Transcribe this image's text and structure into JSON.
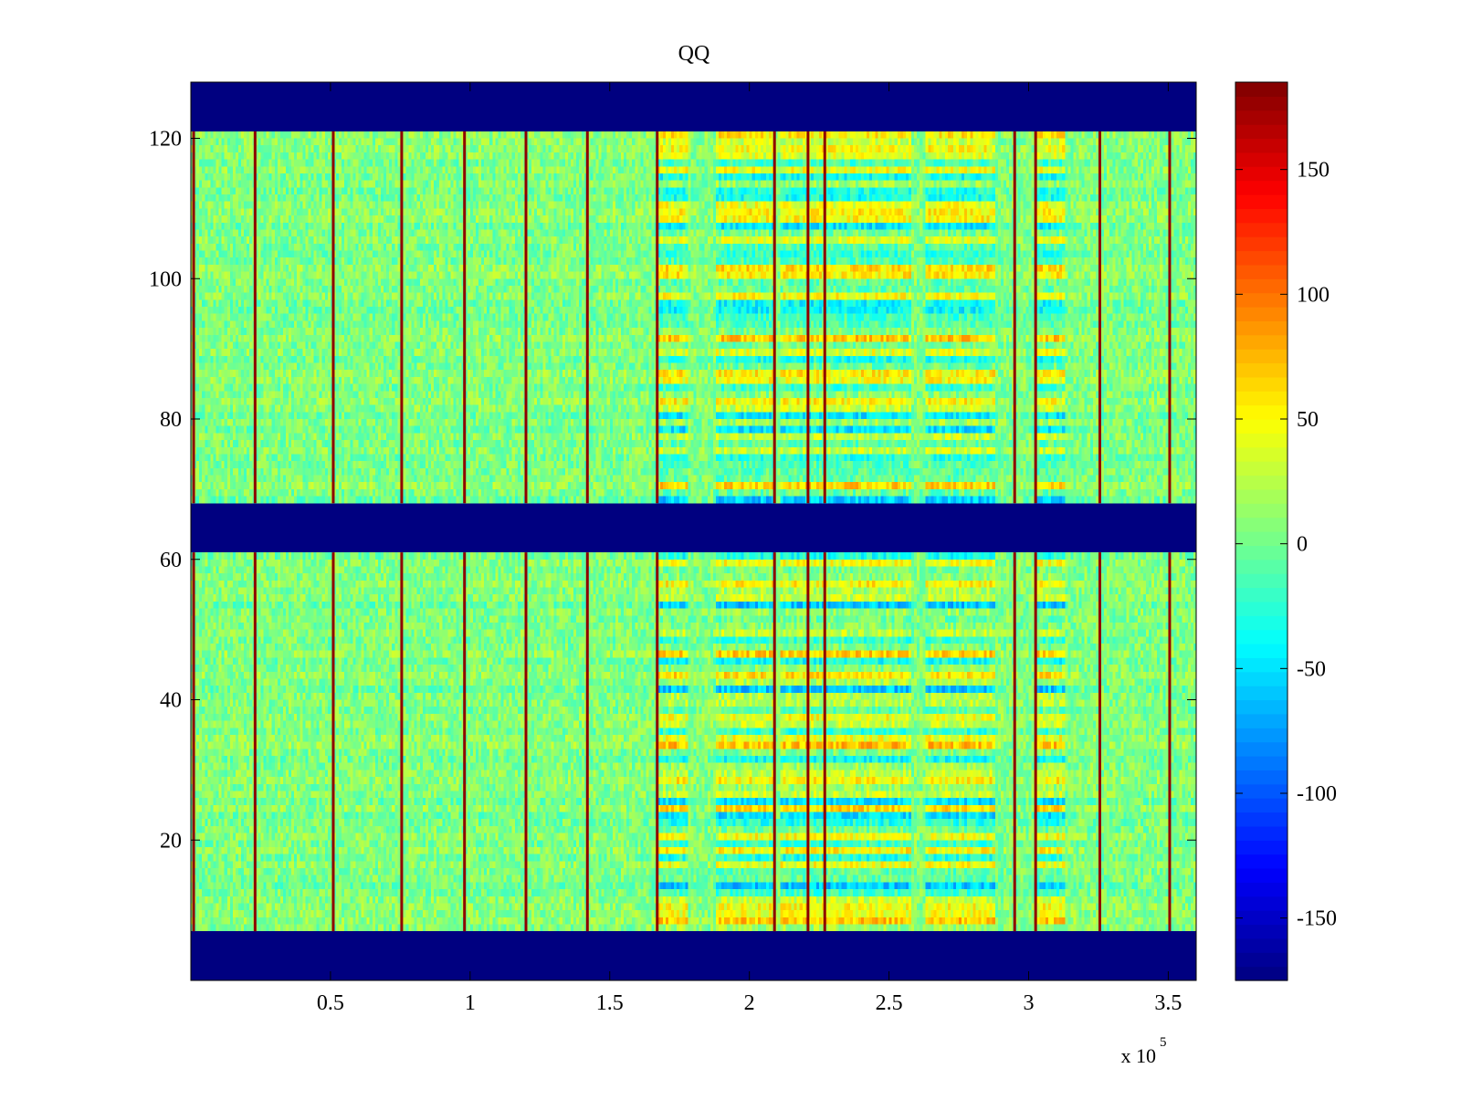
{
  "chart_data": {
    "type": "heatmap",
    "title": "QQ",
    "xlabel": "",
    "ylabel": "",
    "xlim": [
      0,
      360000
    ],
    "ylim": [
      0,
      128
    ],
    "x_multiplier_label": "x 10",
    "x_multiplier_exponent": "5",
    "x_ticks": [
      {
        "value": 50000,
        "label": "0.5"
      },
      {
        "value": 100000,
        "label": "1"
      },
      {
        "value": 150000,
        "label": "1.5"
      },
      {
        "value": 200000,
        "label": "2"
      },
      {
        "value": 250000,
        "label": "2.5"
      },
      {
        "value": 300000,
        "label": "3"
      },
      {
        "value": 350000,
        "label": "3.5"
      }
    ],
    "y_ticks": [
      {
        "value": 20,
        "label": "20"
      },
      {
        "value": 40,
        "label": "40"
      },
      {
        "value": 60,
        "label": "60"
      },
      {
        "value": 80,
        "label": "80"
      },
      {
        "value": 100,
        "label": "100"
      },
      {
        "value": 120,
        "label": "120"
      }
    ],
    "colorbar": {
      "colormap": "jet",
      "range": [
        -175,
        185
      ],
      "ticks": [
        {
          "value": -150,
          "label": "-150"
        },
        {
          "value": -100,
          "label": "-100"
        },
        {
          "value": -50,
          "label": "-50"
        },
        {
          "value": 0,
          "label": "0"
        },
        {
          "value": 50,
          "label": "50"
        },
        {
          "value": 100,
          "label": "100"
        },
        {
          "value": 150,
          "label": "150"
        }
      ]
    },
    "masked_row_bands": [
      [
        0,
        7
      ],
      [
        61,
        68
      ],
      [
        121,
        128
      ]
    ],
    "masked_value": -175,
    "background_value": 5,
    "vertical_spike_columns_x": [
      1000,
      23000,
      51000,
      75500,
      98000,
      120000,
      142000,
      167000,
      209000,
      221000,
      227000,
      295000,
      302500,
      325500,
      350500
    ],
    "spike_value": 180,
    "active_region_x": [
      [
        167000,
        178000
      ],
      [
        188000,
        209000
      ],
      [
        211000,
        258000
      ],
      [
        263000,
        288000
      ],
      [
        302000,
        313000
      ]
    ]
  },
  "colors": {
    "background": "#ffffff",
    "axes": "#000000",
    "masked": "#00008f"
  }
}
